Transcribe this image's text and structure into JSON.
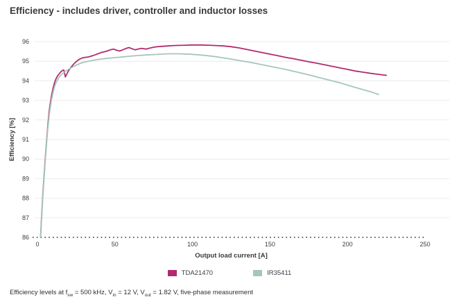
{
  "chart_data": {
    "type": "line",
    "title": "Efficiency - includes driver, controller and inductor losses",
    "xlabel": "Output load current [A]",
    "ylabel": "Efficiency [%]",
    "xlim": [
      0,
      250
    ],
    "ylim": [
      86,
      96
    ],
    "x_ticks": [
      0,
      50,
      100,
      150,
      200,
      250
    ],
    "y_ticks": [
      86,
      87,
      88,
      89,
      90,
      91,
      92,
      93,
      94,
      95,
      96
    ],
    "grid": "horizontal",
    "baseline_dotted_at": 86,
    "legend_position": "bottom-center",
    "colors": {
      "grid": "#ebebeb",
      "baseline": "#2a2a2a",
      "tick_text": "#3c3c46",
      "axis_label_text": "#39393d"
    },
    "series": [
      {
        "name": "TDA21470",
        "color": "#b22a6d",
        "points": [
          [
            2,
            86.0
          ],
          [
            2.5,
            86.8
          ],
          [
            3,
            87.5
          ],
          [
            3.5,
            88.2
          ],
          [
            4,
            88.8
          ],
          [
            4.5,
            89.4
          ],
          [
            5,
            90.0
          ],
          [
            5.5,
            90.5
          ],
          [
            6,
            91.0
          ],
          [
            6.5,
            91.5
          ],
          [
            7,
            92.0
          ],
          [
            7.5,
            92.4
          ],
          [
            8,
            92.7
          ],
          [
            9,
            93.2
          ],
          [
            10,
            93.6
          ],
          [
            11,
            93.9
          ],
          [
            12,
            94.1
          ],
          [
            13,
            94.25
          ],
          [
            14,
            94.35
          ],
          [
            15,
            94.45
          ],
          [
            16,
            94.52
          ],
          [
            17,
            94.55
          ],
          [
            17.5,
            94.4
          ],
          [
            18,
            94.2
          ],
          [
            19,
            94.35
          ],
          [
            20,
            94.5
          ],
          [
            21,
            94.62
          ],
          [
            22,
            94.72
          ],
          [
            23,
            94.82
          ],
          [
            25,
            94.98
          ],
          [
            27,
            95.1
          ],
          [
            29,
            95.17
          ],
          [
            31,
            95.2
          ],
          [
            33,
            95.22
          ],
          [
            35,
            95.27
          ],
          [
            37,
            95.32
          ],
          [
            39,
            95.38
          ],
          [
            41,
            95.44
          ],
          [
            43,
            95.48
          ],
          [
            45,
            95.52
          ],
          [
            47,
            95.58
          ],
          [
            49,
            95.62
          ],
          [
            51,
            95.56
          ],
          [
            53,
            95.52
          ],
          [
            55,
            95.58
          ],
          [
            57,
            95.65
          ],
          [
            59,
            95.7
          ],
          [
            61,
            95.64
          ],
          [
            63,
            95.58
          ],
          [
            65,
            95.62
          ],
          [
            67,
            95.66
          ],
          [
            70,
            95.62
          ],
          [
            73,
            95.68
          ],
          [
            76,
            95.73
          ],
          [
            80,
            95.76
          ],
          [
            84,
            95.78
          ],
          [
            88,
            95.8
          ],
          [
            92,
            95.81
          ],
          [
            96,
            95.82
          ],
          [
            100,
            95.83
          ],
          [
            105,
            95.83
          ],
          [
            110,
            95.82
          ],
          [
            115,
            95.8
          ],
          [
            120,
            95.78
          ],
          [
            125,
            95.74
          ],
          [
            130,
            95.68
          ],
          [
            135,
            95.6
          ],
          [
            140,
            95.52
          ],
          [
            145,
            95.44
          ],
          [
            150,
            95.36
          ],
          [
            155,
            95.28
          ],
          [
            160,
            95.2
          ],
          [
            165,
            95.13
          ],
          [
            170,
            95.05
          ],
          [
            175,
            94.97
          ],
          [
            180,
            94.9
          ],
          [
            185,
            94.82
          ],
          [
            190,
            94.74
          ],
          [
            195,
            94.66
          ],
          [
            200,
            94.58
          ],
          [
            205,
            94.5
          ],
          [
            210,
            94.44
          ],
          [
            215,
            94.38
          ],
          [
            220,
            94.33
          ],
          [
            225,
            94.28
          ]
        ]
      },
      {
        "name": "IR35411",
        "color": "#a3c7bb",
        "points": [
          [
            2,
            86.0
          ],
          [
            2.5,
            86.7
          ],
          [
            3,
            87.4
          ],
          [
            3.5,
            88.1
          ],
          [
            4,
            88.7
          ],
          [
            4.5,
            89.3
          ],
          [
            5,
            89.9
          ],
          [
            5.5,
            90.4
          ],
          [
            6,
            90.9
          ],
          [
            6.5,
            91.4
          ],
          [
            7,
            91.8
          ],
          [
            7.5,
            92.2
          ],
          [
            8,
            92.5
          ],
          [
            9,
            93.0
          ],
          [
            10,
            93.4
          ],
          [
            11,
            93.7
          ],
          [
            12,
            93.9
          ],
          [
            13,
            94.05
          ],
          [
            14,
            94.18
          ],
          [
            15,
            94.28
          ],
          [
            16,
            94.36
          ],
          [
            17,
            94.42
          ],
          [
            18,
            94.48
          ],
          [
            19,
            94.53
          ],
          [
            20,
            94.58
          ],
          [
            22,
            94.67
          ],
          [
            24,
            94.76
          ],
          [
            26,
            94.83
          ],
          [
            28,
            94.9
          ],
          [
            30,
            94.95
          ],
          [
            33,
            95.0
          ],
          [
            36,
            95.05
          ],
          [
            40,
            95.1
          ],
          [
            44,
            95.14
          ],
          [
            48,
            95.17
          ],
          [
            52,
            95.2
          ],
          [
            56,
            95.23
          ],
          [
            60,
            95.26
          ],
          [
            65,
            95.29
          ],
          [
            70,
            95.32
          ],
          [
            75,
            95.34
          ],
          [
            80,
            95.36
          ],
          [
            85,
            95.38
          ],
          [
            90,
            95.38
          ],
          [
            95,
            95.37
          ],
          [
            100,
            95.35
          ],
          [
            105,
            95.32
          ],
          [
            110,
            95.28
          ],
          [
            115,
            95.23
          ],
          [
            120,
            95.17
          ],
          [
            125,
            95.11
          ],
          [
            130,
            95.04
          ],
          [
            135,
            94.97
          ],
          [
            140,
            94.9
          ],
          [
            145,
            94.82
          ],
          [
            150,
            94.74
          ],
          [
            155,
            94.66
          ],
          [
            160,
            94.58
          ],
          [
            165,
            94.49
          ],
          [
            170,
            94.4
          ],
          [
            175,
            94.3
          ],
          [
            180,
            94.2
          ],
          [
            185,
            94.1
          ],
          [
            190,
            94.0
          ],
          [
            195,
            93.9
          ],
          [
            200,
            93.78
          ],
          [
            205,
            93.66
          ],
          [
            210,
            93.55
          ],
          [
            215,
            93.44
          ],
          [
            220,
            93.3
          ]
        ]
      }
    ],
    "footer_segments": [
      {
        "text": "Efficiency levels at f"
      },
      {
        "sub": "sw"
      },
      {
        "text": " = 500 kHz, V"
      },
      {
        "sub": "in"
      },
      {
        "text": " = 12 V, V"
      },
      {
        "sub": "out"
      },
      {
        "text": " = 1.82 V, five-phase measurement"
      }
    ]
  }
}
